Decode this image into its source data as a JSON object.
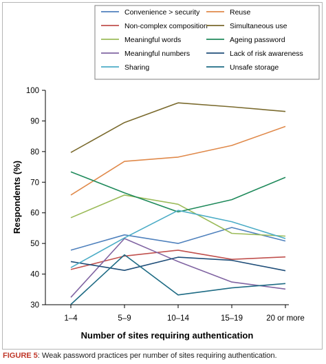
{
  "chart_data": {
    "type": "line",
    "categories": [
      "1–4",
      "5–9",
      "10–14",
      "15–19",
      "20 or more"
    ],
    "xlabel": "Number of sites requiring authentication",
    "ylabel": "Respondents (%)",
    "ylim": [
      30,
      100
    ],
    "yticks": [
      "30",
      "40",
      "50",
      "60",
      "70",
      "80",
      "90",
      "100"
    ],
    "grid": false,
    "legend_position": "top",
    "series": [
      {
        "name": "Convenience > security",
        "color": "#4f81bd",
        "values": [
          47.8,
          52.8,
          50.0,
          55.2,
          50.8
        ]
      },
      {
        "name": "Reuse",
        "color": "#e0894a",
        "values": [
          65.8,
          76.8,
          78.2,
          82.0,
          88.2
        ]
      },
      {
        "name": "Non-complex composition",
        "color": "#c0504d",
        "values": [
          41.5,
          45.9,
          47.8,
          44.8,
          45.6
        ]
      },
      {
        "name": "Simultaneous use",
        "color": "#7a6a2d",
        "values": [
          79.7,
          89.5,
          95.9,
          94.6,
          93.1
        ]
      },
      {
        "name": "Meaningful words",
        "color": "#9bbb59",
        "values": [
          58.4,
          65.8,
          62.8,
          53.3,
          52.4
        ]
      },
      {
        "name": "Ageing password",
        "color": "#1f8a5b",
        "values": [
          73.4,
          66.5,
          60.3,
          64.3,
          71.6
        ]
      },
      {
        "name": "Meaningful numbers",
        "color": "#8064a2",
        "values": [
          32.4,
          51.6,
          44.1,
          37.4,
          35.1
        ]
      },
      {
        "name": "Lack of risk awareness",
        "color": "#1f4e79",
        "values": [
          44.1,
          41.2,
          45.5,
          44.5,
          41.1
        ]
      },
      {
        "name": "Sharing",
        "color": "#4bacc6",
        "values": [
          42.1,
          51.8,
          60.8,
          57.1,
          51.6
        ]
      },
      {
        "name": "Unsafe storage",
        "color": "#1e6b84",
        "values": [
          30.1,
          46.3,
          33.2,
          35.5,
          36.9
        ]
      }
    ]
  },
  "caption": {
    "label": "FIGURE 5",
    "text": ": Weak password practices per number of sites requiring authentication."
  }
}
